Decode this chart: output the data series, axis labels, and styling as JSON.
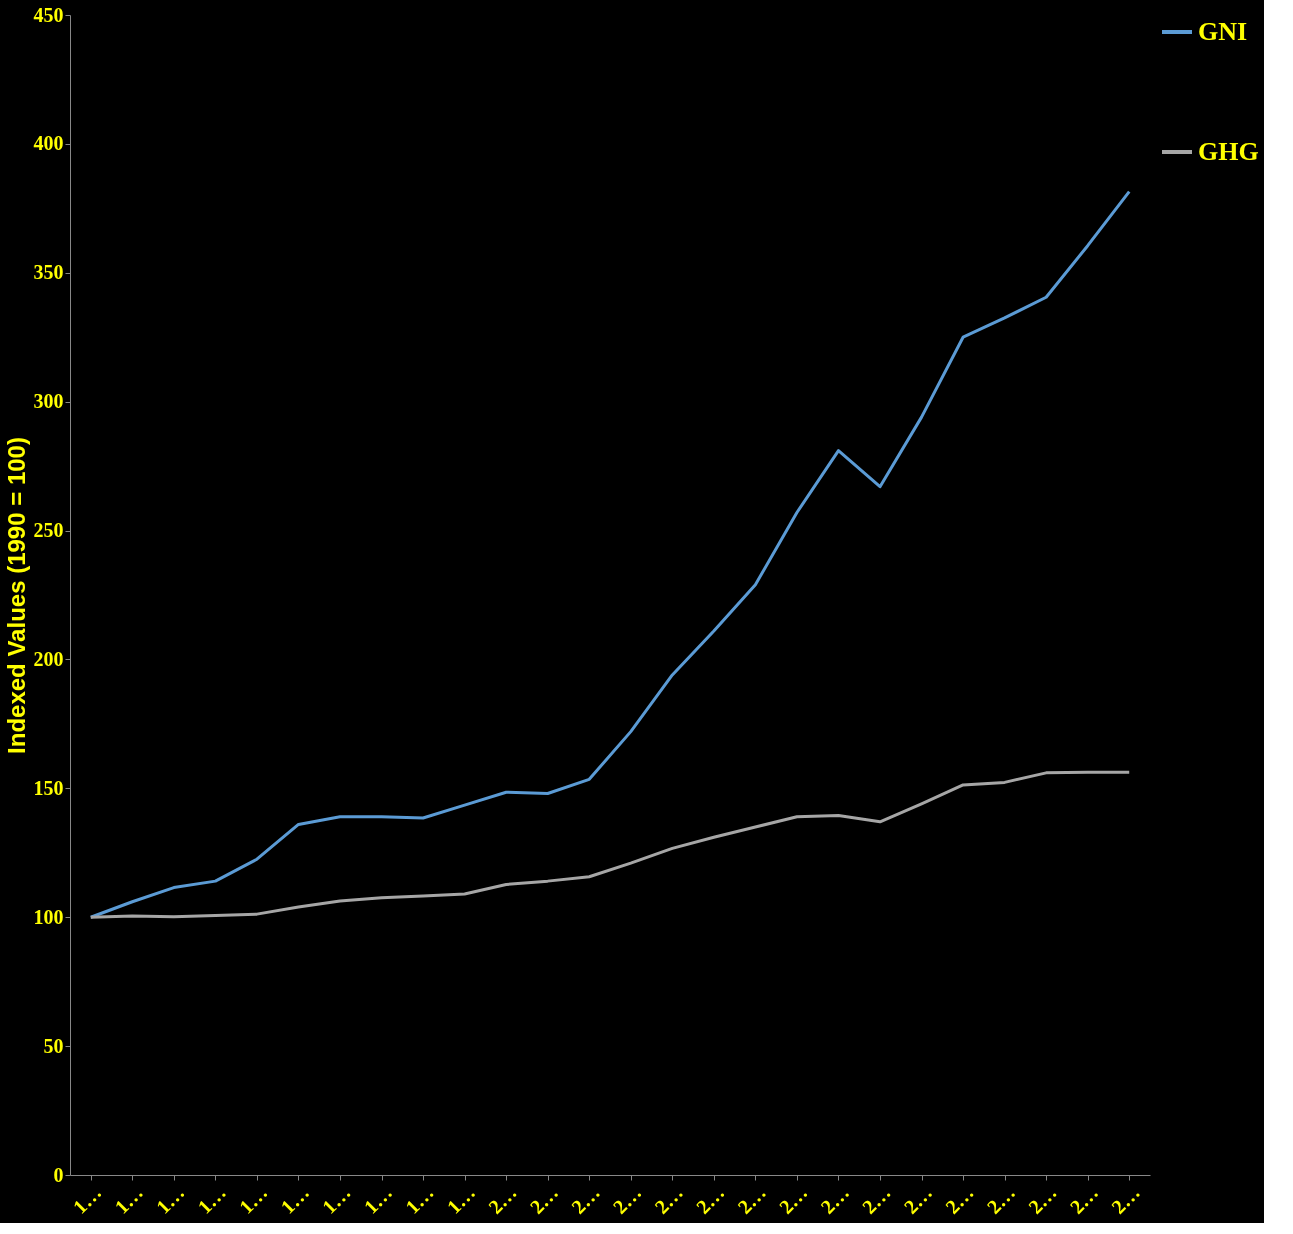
{
  "chart_data": {
    "type": "line",
    "ylabel": "Indexed Values (1990 = 100)",
    "categories": [
      "1…",
      "1…",
      "1…",
      "1…",
      "1…",
      "1…",
      "1…",
      "1…",
      "1…",
      "1…",
      "2…",
      "2…",
      "2…",
      "2…",
      "2…",
      "2…",
      "2…",
      "2…",
      "2…",
      "2…",
      "2…",
      "2…",
      "2…",
      "2…",
      "2…",
      "2…"
    ],
    "series": [
      {
        "name": "GNI",
        "color": "#5b9bd5",
        "values": [
          100,
          106,
          111.5,
          114,
          122.5,
          136,
          139,
          139,
          138.5,
          143.5,
          148.5,
          148,
          153.5,
          172,
          194,
          211,
          229,
          257,
          281,
          267,
          294,
          325,
          332.5,
          340.5,
          360.5,
          381.5
        ]
      },
      {
        "name": "GHG",
        "color": "#a6a6a6",
        "values": [
          100,
          100.5,
          100.2,
          100.7,
          101.2,
          104,
          106.3,
          107.6,
          108.2,
          109,
          112.7,
          114,
          115.7,
          121,
          126.7,
          131,
          135,
          139,
          139.5,
          137,
          144,
          151.3,
          152.3,
          156,
          156.2,
          156.2
        ]
      }
    ],
    "ylim": [
      0,
      450
    ],
    "yticks": [
      0,
      50,
      100,
      150,
      200,
      250,
      300,
      350,
      400,
      450
    ],
    "grid": false,
    "legend": "right",
    "line_style": "solid",
    "marker": "none"
  }
}
